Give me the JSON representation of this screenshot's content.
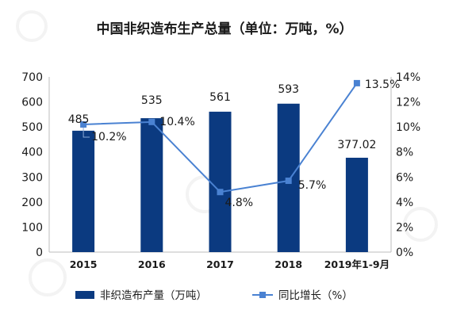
{
  "title": "中国非织造布生产总量（单位：万吨，%）",
  "chart_data": {
    "type": "bar",
    "title": "中国非织造布生产总量（单位：万吨，%）",
    "categories": [
      "2015",
      "2016",
      "2017",
      "2018",
      "2019年1-9月"
    ],
    "series": [
      {
        "name": "非织造布产量（万吨）",
        "type": "bar",
        "axis": "left",
        "color": "#0b3a80",
        "values": [
          485,
          535,
          561,
          593,
          377.02
        ],
        "labels": [
          "485",
          "535",
          "561",
          "593",
          "377.02"
        ]
      },
      {
        "name": "同比增长（%）",
        "type": "line",
        "axis": "right",
        "color": "#4a82d2",
        "values": [
          10.2,
          10.4,
          4.8,
          5.7,
          13.5
        ],
        "labels": [
          "10.2%",
          "10.4%",
          "4.8%",
          "5.7%",
          "13.5%"
        ]
      }
    ],
    "y_left": {
      "min": 0,
      "max": 700,
      "step": 100,
      "ticks": [
        "0",
        "100",
        "200",
        "300",
        "400",
        "500",
        "600",
        "700"
      ]
    },
    "y_right": {
      "min": 0,
      "max": 14,
      "step": 2,
      "ticks": [
        "0%",
        "2%",
        "4%",
        "6%",
        "8%",
        "10%",
        "12%",
        "14%"
      ]
    },
    "grid": false,
    "legend_position": "bottom"
  }
}
